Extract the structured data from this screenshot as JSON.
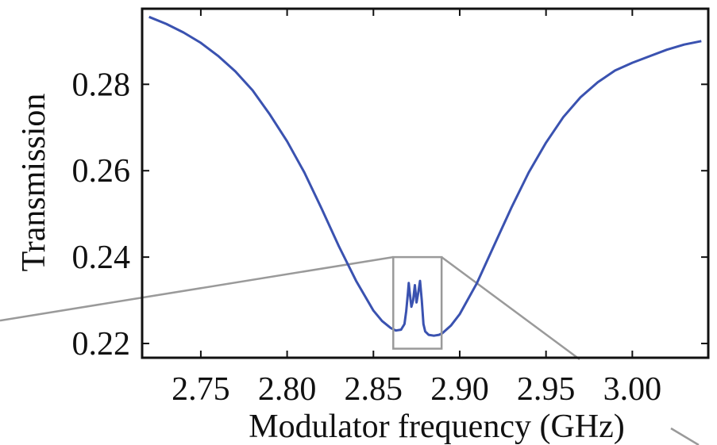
{
  "chart_data": {
    "type": "line",
    "title": "",
    "xlabel": "Modulator frequency (GHz)",
    "ylabel": "Transmission",
    "xlim": [
      2.716,
      3.044
    ],
    "ylim": [
      0.2167,
      0.2975
    ],
    "grid": false,
    "x_ticks": [
      2.75,
      2.8,
      2.85,
      2.9,
      2.95,
      3.0
    ],
    "x_tick_labels": [
      "2.75",
      "2.80",
      "2.85",
      "2.90",
      "2.95",
      "3.00"
    ],
    "y_ticks": [
      0.22,
      0.24,
      0.26,
      0.28
    ],
    "y_tick_labels": [
      "0.22",
      "0.24",
      "0.26",
      "0.28"
    ],
    "series": [
      {
        "color": "#3a52b0",
        "x": [
          2.72,
          2.73,
          2.74,
          2.75,
          2.76,
          2.77,
          2.78,
          2.79,
          2.8,
          2.81,
          2.82,
          2.83,
          2.84,
          2.85,
          2.855,
          2.86,
          2.863,
          2.866,
          2.868,
          2.869,
          2.87,
          2.8705,
          2.871,
          2.872,
          2.873,
          2.874,
          2.875,
          2.876,
          2.877,
          2.878,
          2.879,
          2.88,
          2.882,
          2.885,
          2.888,
          2.89,
          2.895,
          2.9,
          2.91,
          2.92,
          2.93,
          2.94,
          2.95,
          2.96,
          2.97,
          2.98,
          2.99,
          3.0,
          3.01,
          3.02,
          3.03,
          3.04
        ],
        "y": [
          0.2956,
          0.294,
          0.292,
          0.2896,
          0.2866,
          0.283,
          0.2786,
          0.273,
          0.2668,
          0.2596,
          0.2512,
          0.2425,
          0.2345,
          0.2276,
          0.2252,
          0.2236,
          0.223,
          0.2232,
          0.2245,
          0.2275,
          0.2318,
          0.234,
          0.232,
          0.2285,
          0.23,
          0.2335,
          0.2295,
          0.2318,
          0.2345,
          0.23,
          0.2245,
          0.2228,
          0.222,
          0.2218,
          0.222,
          0.2224,
          0.2242,
          0.2268,
          0.234,
          0.2428,
          0.2515,
          0.2596,
          0.2665,
          0.2724,
          0.277,
          0.2805,
          0.2832,
          0.285,
          0.2865,
          0.288,
          0.2892,
          0.29
        ]
      }
    ],
    "annotations": [
      {
        "type": "inset-box",
        "color": "#9a9a9a",
        "x_range": [
          2.8615,
          2.8895
        ],
        "y_range": [
          0.2188,
          0.24
        ]
      }
    ]
  }
}
